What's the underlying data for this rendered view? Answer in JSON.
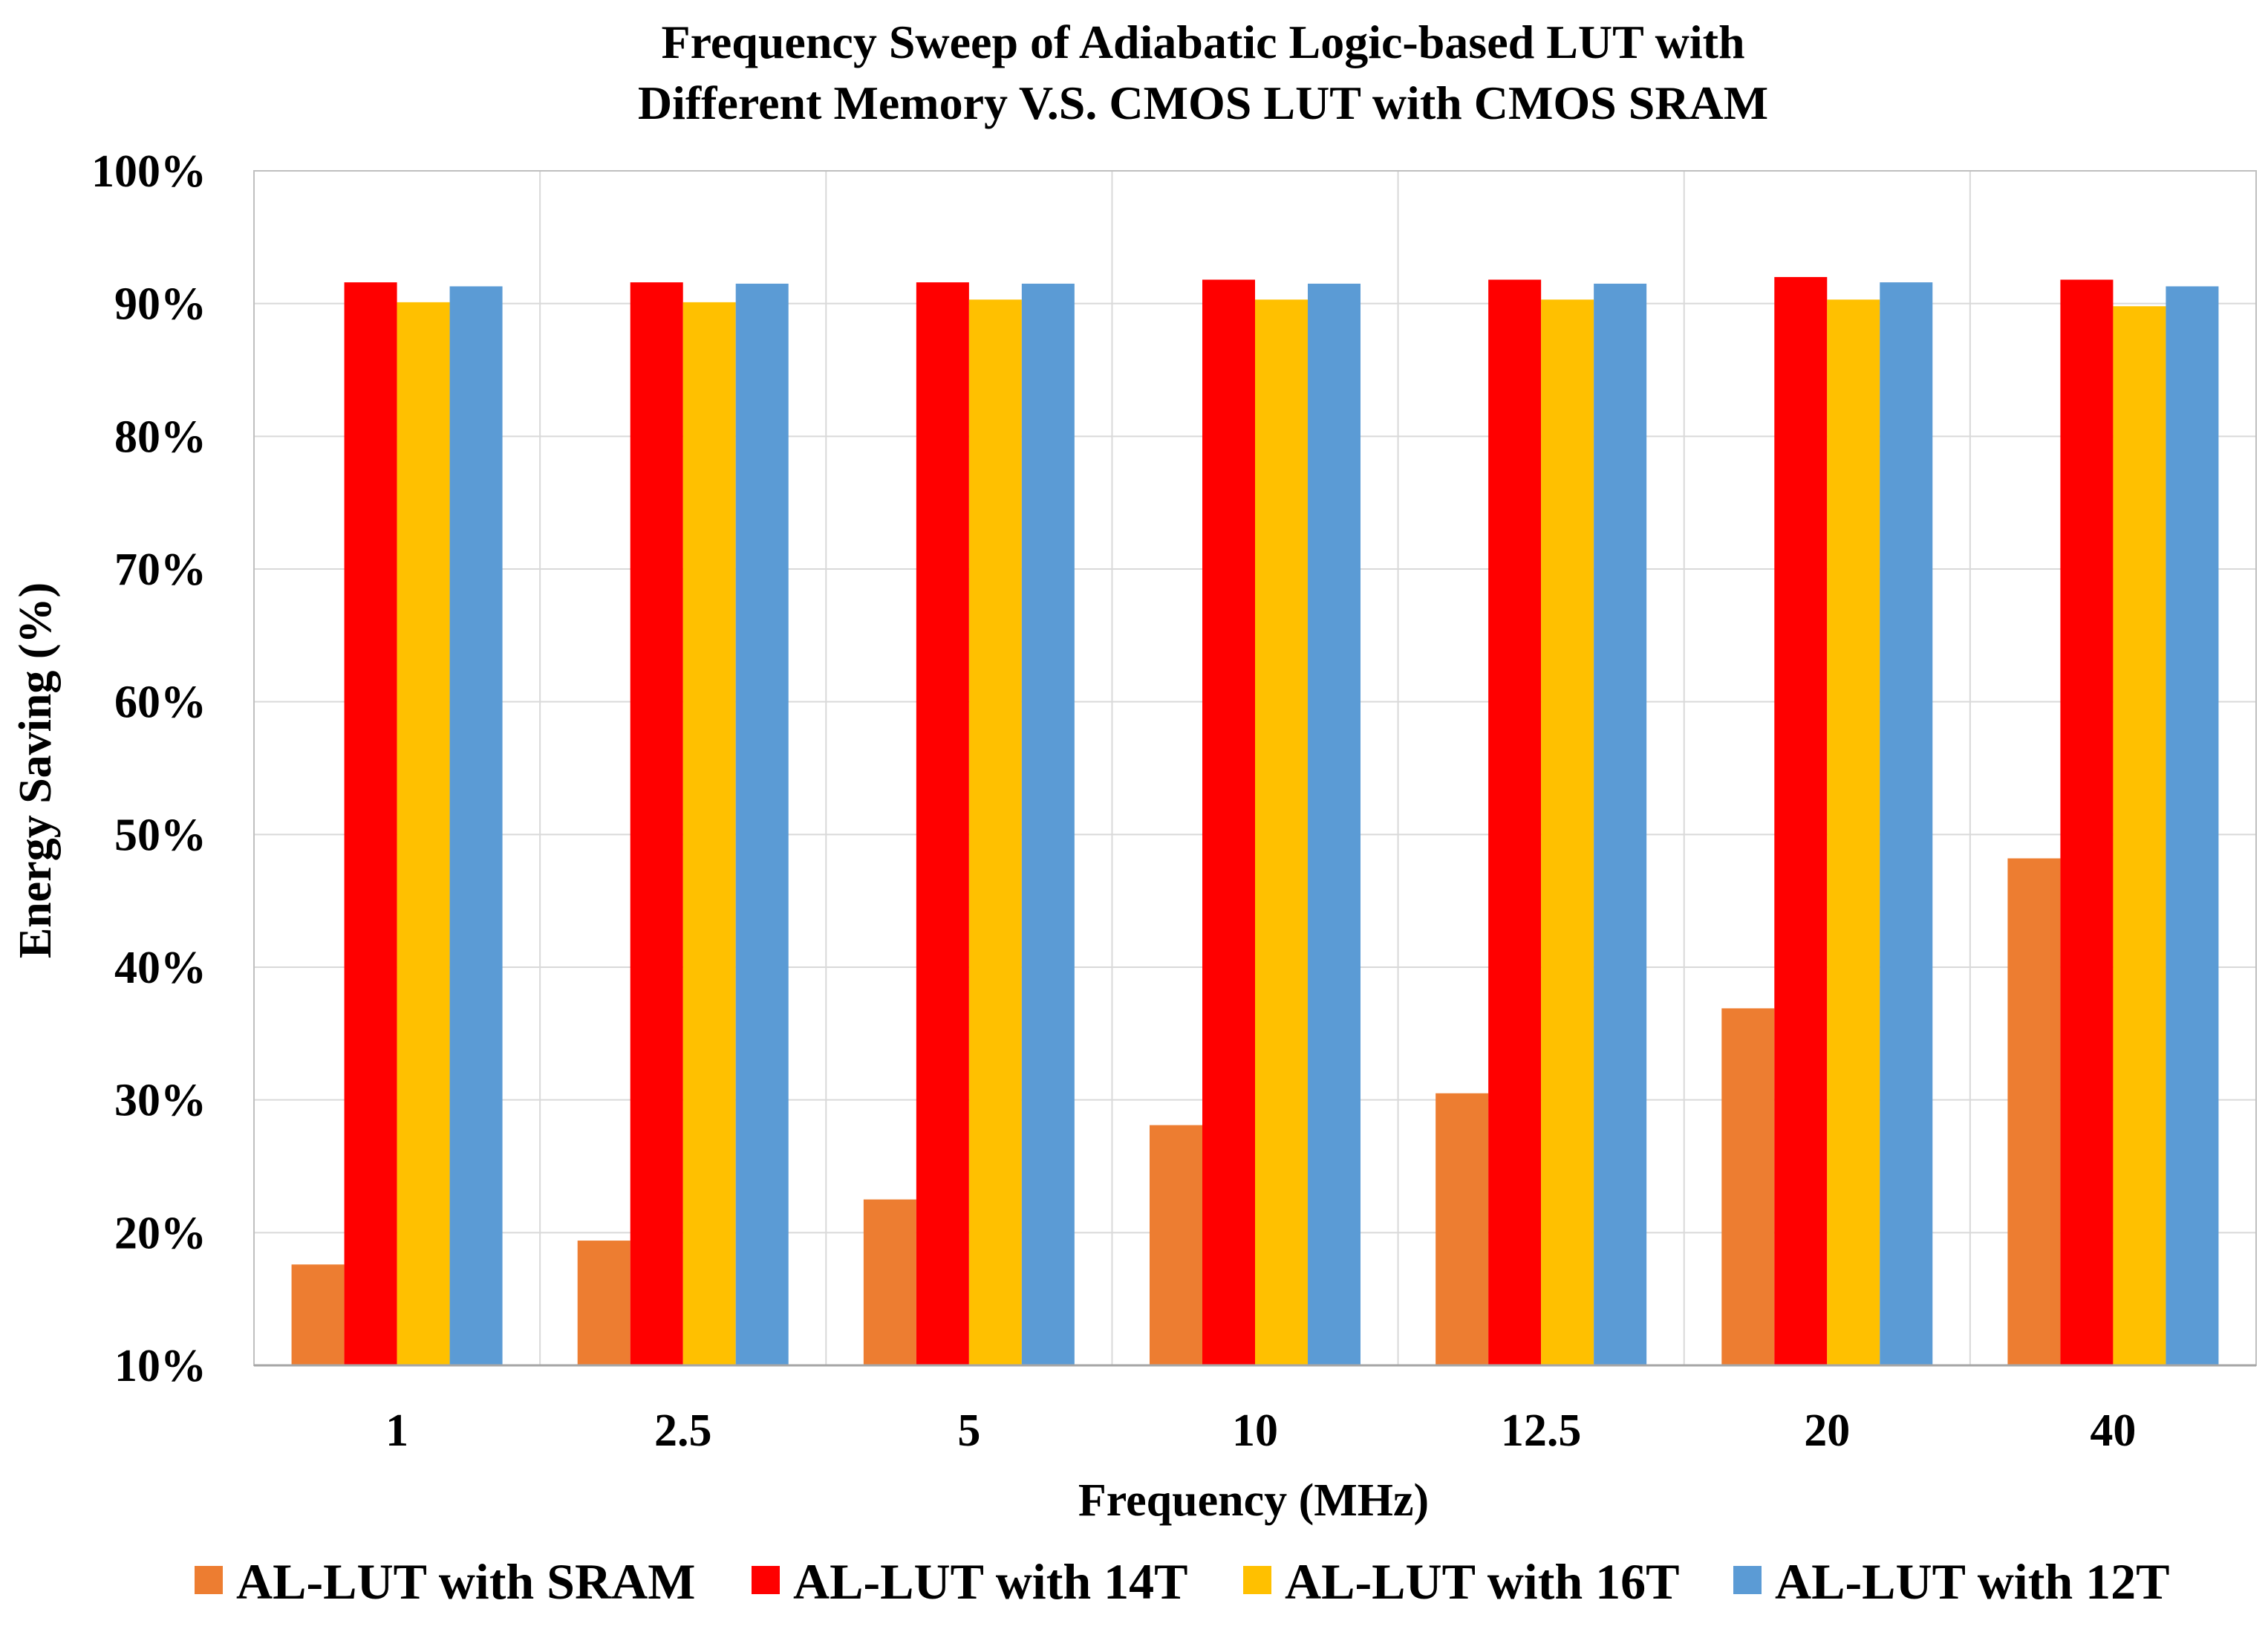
{
  "chart_data": {
    "type": "bar",
    "title_lines": [
      "Frequency Sweep of Adiabatic Logic-based LUT with",
      "Different Memory V.S. CMOS LUT with CMOS SRAM"
    ],
    "xlabel": "Frequency (MHz)",
    "ylabel": "Energy Saving (%)",
    "categories": [
      "1",
      "2.5",
      "5",
      "10",
      "12.5",
      "20",
      "40"
    ],
    "ylim": [
      10,
      100
    ],
    "y_ticks": [
      10,
      20,
      30,
      40,
      50,
      60,
      70,
      80,
      90,
      100
    ],
    "y_tick_labels": [
      "10%",
      "20%",
      "30%",
      "40%",
      "50%",
      "60%",
      "70%",
      "80%",
      "90%",
      "100%"
    ],
    "grid": true,
    "legend_position": "bottom",
    "series": [
      {
        "name": "AL-LUT with SRAM",
        "color": "#ed7d31",
        "values": [
          17.6,
          19.4,
          22.5,
          28.1,
          30.5,
          36.9,
          48.2
        ]
      },
      {
        "name": "AL-LUT with 14T",
        "color": "#ff0000",
        "values": [
          91.6,
          91.6,
          91.6,
          91.8,
          91.8,
          92.0,
          91.8
        ]
      },
      {
        "name": "AL-LUT with 16T",
        "color": "#ffc000",
        "values": [
          90.1,
          90.1,
          90.3,
          90.3,
          90.3,
          90.3,
          89.8
        ]
      },
      {
        "name": "AL-LUT with 12T",
        "color": "#5b9bd5",
        "values": [
          91.3,
          91.5,
          91.5,
          91.5,
          91.5,
          91.6,
          91.3
        ]
      }
    ]
  }
}
